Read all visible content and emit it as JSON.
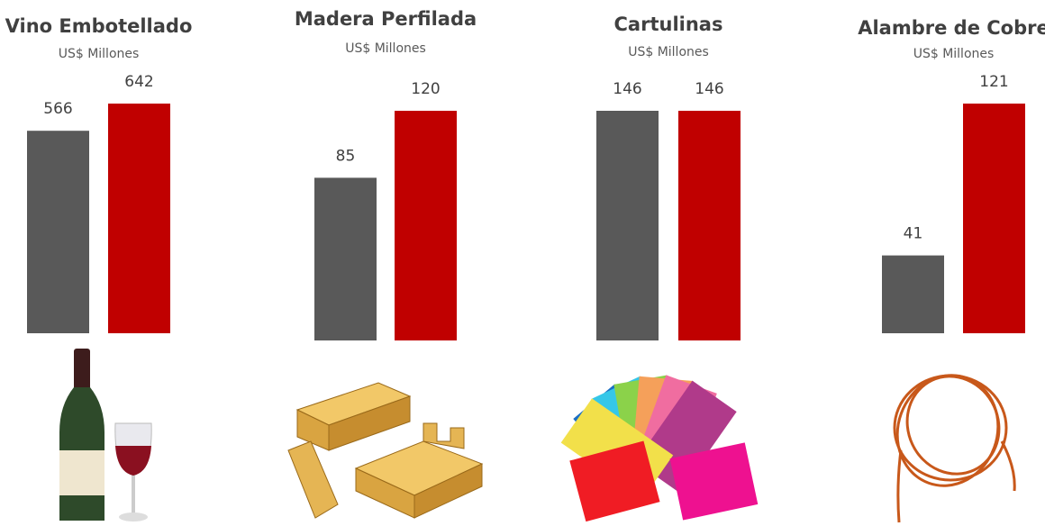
{
  "chart_data": [
    {
      "type": "bar",
      "title": "Vino Embotellado",
      "subtitle": "US$ Millones",
      "values": [
        566,
        642
      ],
      "colors": [
        "#595959",
        "#c00000"
      ]
    },
    {
      "type": "bar",
      "title": "Madera Perfilada",
      "subtitle": "US$ Millones",
      "values": [
        85,
        120
      ],
      "colors": [
        "#595959",
        "#c00000"
      ]
    },
    {
      "type": "bar",
      "title": "Cartulinas",
      "subtitle": "US$ Millones",
      "values": [
        146,
        146
      ],
      "colors": [
        "#595959",
        "#c00000"
      ]
    },
    {
      "type": "bar",
      "title": "Alambre de Cobre",
      "subtitle": "US$ Millones",
      "values": [
        41,
        121
      ],
      "colors": [
        "#595959",
        "#c00000"
      ]
    }
  ]
}
